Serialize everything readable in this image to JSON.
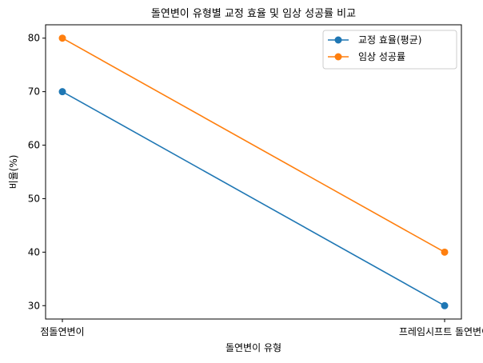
{
  "chart_data": {
    "type": "line",
    "title": "돌연변이 유형별 교정 효율 및 임상 성공률 비교",
    "xlabel": "돌연변이 유형",
    "ylabel": "비율(%)",
    "categories": [
      "점돌연변이",
      "프레임시프트 돌연변이"
    ],
    "series": [
      {
        "name": "교정 효율(평균)",
        "values": [
          70,
          30
        ],
        "color": "#1f77b4"
      },
      {
        "name": "임상 성공률",
        "values": [
          80,
          40
        ],
        "color": "#ff7f0e"
      }
    ],
    "ylim": [
      27.5,
      82.5
    ],
    "yticks": [
      30,
      40,
      50,
      60,
      70,
      80
    ],
    "grid": false,
    "legend_position": "top-right"
  }
}
